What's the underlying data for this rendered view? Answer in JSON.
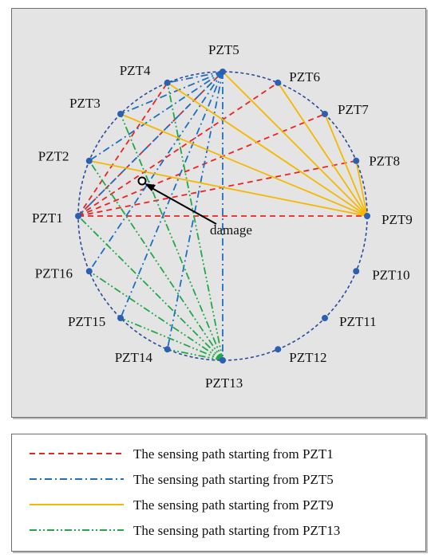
{
  "sensors": [
    {
      "id": "PZT1",
      "label": "PZT1"
    },
    {
      "id": "PZT2",
      "label": "PZT2"
    },
    {
      "id": "PZT3",
      "label": "PZT3"
    },
    {
      "id": "PZT4",
      "label": "PZT4"
    },
    {
      "id": "PZT5",
      "label": "PZT5"
    },
    {
      "id": "PZT6",
      "label": "PZT6"
    },
    {
      "id": "PZT7",
      "label": "PZT7"
    },
    {
      "id": "PZT8",
      "label": "PZT8"
    },
    {
      "id": "PZT9",
      "label": "PZT9"
    },
    {
      "id": "PZT10",
      "label": "PZT10"
    },
    {
      "id": "PZT11",
      "label": "PZT11"
    },
    {
      "id": "PZT12",
      "label": "PZT12"
    },
    {
      "id": "PZT13",
      "label": "PZT13"
    },
    {
      "id": "PZT14",
      "label": "PZT14"
    },
    {
      "id": "PZT15",
      "label": "PZT15"
    },
    {
      "id": "PZT16",
      "label": "PZT16"
    }
  ],
  "damage": {
    "label": "damage"
  },
  "paths": [
    {
      "from": "PZT1",
      "to": [
        "PZT4",
        "PZT5",
        "PZT6",
        "PZT7",
        "PZT8",
        "PZT9"
      ],
      "color": "#ee2222",
      "style": "dashed"
    },
    {
      "from": "PZT5",
      "to": [
        "PZT1",
        "PZT2",
        "PZT3",
        "PZT4",
        "PZT13",
        "PZT14",
        "PZT15",
        "PZT16"
      ],
      "color": "#1f6fc0",
      "style": "dashdot"
    },
    {
      "from": "PZT9",
      "to": [
        "PZT2",
        "PZT3",
        "PZT4",
        "PZT5",
        "PZT6",
        "PZT7",
        "PZT8"
      ],
      "color": "#f5b800",
      "style": "solid"
    },
    {
      "from": "PZT13",
      "to": [
        "PZT1",
        "PZT2",
        "PZT3",
        "PZT4",
        "PZT14",
        "PZT15",
        "PZT16"
      ],
      "color": "#22a84a",
      "style": "dashdotdot"
    }
  ],
  "colors": {
    "circle": "#2a4a9a",
    "sensor_dot": "#2b5fb0",
    "background": "#e4e4e4",
    "frame": "#6e6e6e"
  },
  "legend": [
    {
      "text": "The sensing path starting from PZT1",
      "color": "#ee2222",
      "style": "dashed"
    },
    {
      "text": "The sensing path starting from PZT5",
      "color": "#1f6fc0",
      "style": "dashdot"
    },
    {
      "text": "The sensing path starting from PZT9",
      "color": "#f5b800",
      "style": "solid"
    },
    {
      "text": "The sensing path starting from PZT13",
      "color": "#22a84a",
      "style": "dashdotdot"
    }
  ]
}
